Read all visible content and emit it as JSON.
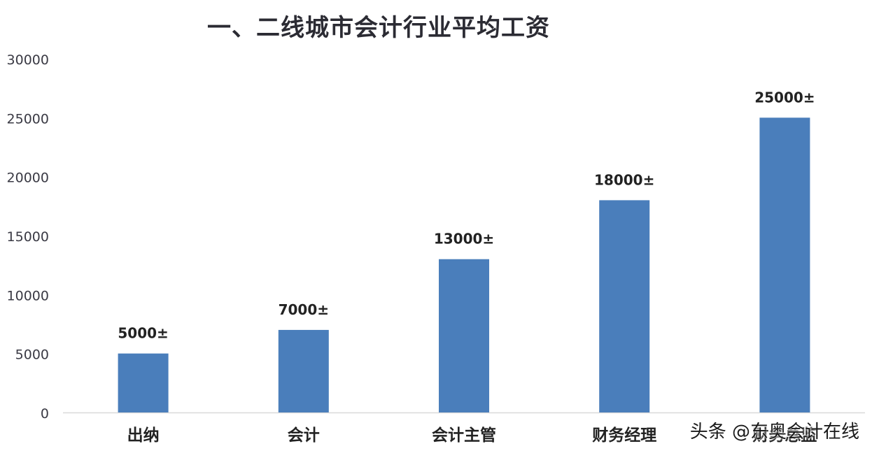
{
  "chart_data": {
    "type": "bar",
    "title": "一、二线城市会计行业平均工资",
    "categories": [
      "出纳",
      "会计",
      "会计主管",
      "财务经理",
      "财务总监"
    ],
    "values": [
      5000,
      7000,
      13000,
      18000,
      25000
    ],
    "data_labels": [
      "5000±",
      "7000±",
      "13000±",
      "18000±",
      "25000±"
    ],
    "ylim": [
      0,
      30000
    ],
    "yticks": [
      0,
      5000,
      10000,
      15000,
      20000,
      25000,
      30000
    ],
    "xlabel": "",
    "ylabel": "",
    "grid": false,
    "legend": "none",
    "bar_color": "#4a7ebb"
  },
  "watermark": "头条 @东奥会计在线"
}
